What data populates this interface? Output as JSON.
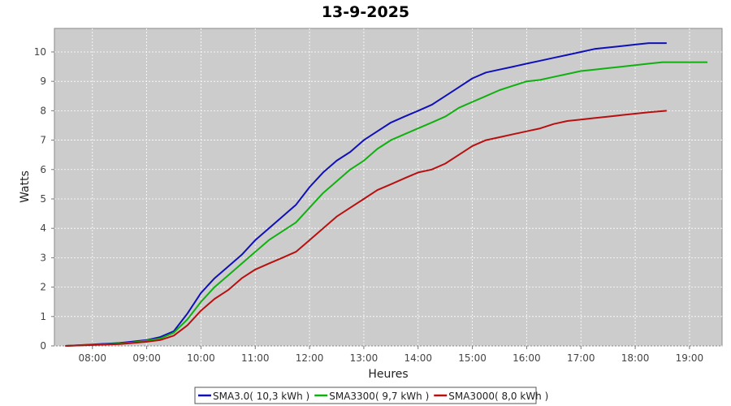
{
  "chart_data": {
    "type": "line",
    "title": "13-9-2025",
    "xlabel": "Heures",
    "ylabel": "Watts",
    "x_tick_labels": [
      "08:00",
      "09:00",
      "10:00",
      "11:00",
      "12:00",
      "13:00",
      "14:00",
      "15:00",
      "16:00",
      "17:00",
      "18:00",
      "19:00"
    ],
    "x_ticks_hours": [
      8,
      9,
      10,
      11,
      12,
      13,
      14,
      15,
      16,
      17,
      18,
      19
    ],
    "y_tick_labels": [
      "0",
      "1",
      "2",
      "3",
      "4",
      "5",
      "6",
      "7",
      "8",
      "9",
      "10"
    ],
    "y_ticks": [
      0,
      1,
      2,
      3,
      4,
      5,
      6,
      7,
      8,
      9,
      10
    ],
    "xlim_hours": [
      7.3,
      19.6
    ],
    "ylim": [
      0,
      10.8
    ],
    "grid": true,
    "legend_position": "bottom",
    "background_color": "#cccccc",
    "grid_color": "#ffffff",
    "series": [
      {
        "name": "SMA3.0( 10,3 kWh )",
        "color": "#1010b8",
        "x": [
          7.5,
          8.0,
          8.5,
          8.75,
          9.0,
          9.25,
          9.5,
          9.75,
          10.0,
          10.25,
          10.5,
          10.75,
          11.0,
          11.25,
          11.5,
          11.75,
          12.0,
          12.25,
          12.5,
          12.75,
          13.0,
          13.25,
          13.5,
          13.75,
          14.0,
          14.25,
          14.5,
          14.75,
          15.0,
          15.25,
          15.5,
          15.75,
          16.0,
          16.25,
          16.5,
          16.75,
          17.0,
          17.25,
          17.5,
          17.75,
          18.0,
          18.25,
          18.58
        ],
        "y": [
          0.0,
          0.05,
          0.1,
          0.15,
          0.2,
          0.3,
          0.5,
          1.1,
          1.8,
          2.3,
          2.7,
          3.1,
          3.6,
          4.0,
          4.4,
          4.8,
          5.4,
          5.9,
          6.3,
          6.6,
          7.0,
          7.3,
          7.6,
          7.8,
          8.0,
          8.2,
          8.5,
          8.8,
          9.1,
          9.3,
          9.4,
          9.5,
          9.6,
          9.7,
          9.8,
          9.9,
          10.0,
          10.1,
          10.15,
          10.2,
          10.25,
          10.3,
          10.3
        ]
      },
      {
        "name": "SMA3300( 9,7 kWh )",
        "color": "#10b010",
        "x": [
          7.5,
          8.0,
          8.5,
          8.75,
          9.0,
          9.25,
          9.5,
          9.75,
          10.0,
          10.25,
          10.5,
          10.75,
          11.0,
          11.25,
          11.5,
          11.75,
          12.0,
          12.25,
          12.5,
          12.75,
          13.0,
          13.25,
          13.5,
          13.75,
          14.0,
          14.25,
          14.5,
          14.75,
          15.0,
          15.25,
          15.5,
          15.75,
          16.0,
          16.25,
          16.5,
          16.75,
          17.0,
          17.25,
          17.5,
          17.75,
          18.0,
          18.25,
          18.5,
          18.75,
          19.0,
          19.33
        ],
        "y": [
          0.0,
          0.04,
          0.08,
          0.12,
          0.18,
          0.25,
          0.45,
          0.9,
          1.5,
          2.0,
          2.4,
          2.8,
          3.2,
          3.6,
          3.9,
          4.2,
          4.7,
          5.2,
          5.6,
          6.0,
          6.3,
          6.7,
          7.0,
          7.2,
          7.4,
          7.6,
          7.8,
          8.1,
          8.3,
          8.5,
          8.7,
          8.85,
          9.0,
          9.05,
          9.15,
          9.25,
          9.35,
          9.4,
          9.45,
          9.5,
          9.55,
          9.6,
          9.65,
          9.65,
          9.65,
          9.65
        ]
      },
      {
        "name": "SMA3000( 8,0 kWh )",
        "color": "#b81010",
        "x": [
          7.5,
          8.0,
          8.5,
          8.75,
          9.0,
          9.25,
          9.5,
          9.75,
          10.0,
          10.25,
          10.5,
          10.75,
          11.0,
          11.25,
          11.5,
          11.75,
          12.0,
          12.25,
          12.5,
          12.75,
          13.0,
          13.25,
          13.5,
          13.75,
          14.0,
          14.25,
          14.5,
          14.75,
          15.0,
          15.25,
          15.5,
          15.75,
          16.0,
          16.25,
          16.5,
          16.75,
          17.0,
          17.25,
          17.5,
          17.75,
          18.0,
          18.25,
          18.58
        ],
        "y": [
          0.0,
          0.03,
          0.06,
          0.1,
          0.14,
          0.2,
          0.35,
          0.7,
          1.2,
          1.6,
          1.9,
          2.3,
          2.6,
          2.8,
          3.0,
          3.2,
          3.6,
          4.0,
          4.4,
          4.7,
          5.0,
          5.3,
          5.5,
          5.7,
          5.9,
          6.0,
          6.2,
          6.5,
          6.8,
          7.0,
          7.1,
          7.2,
          7.3,
          7.4,
          7.55,
          7.65,
          7.7,
          7.75,
          7.8,
          7.85,
          7.9,
          7.95,
          8.0
        ]
      }
    ]
  }
}
